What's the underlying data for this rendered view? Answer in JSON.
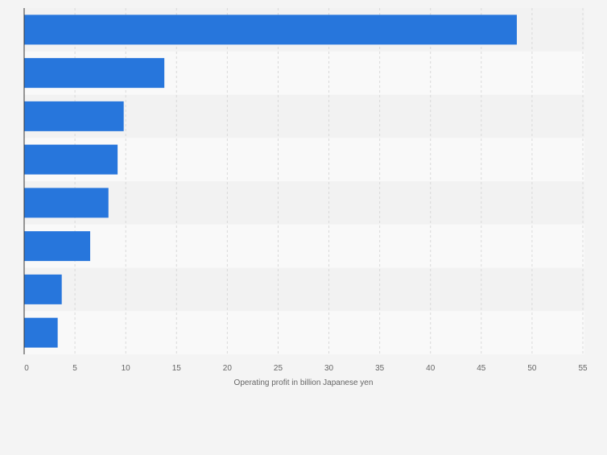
{
  "chart_data": {
    "type": "bar",
    "orientation": "horizontal",
    "categories": [
      "",
      "",
      "",
      "",
      "",
      "",
      "",
      ""
    ],
    "values": [
      48.5,
      13.8,
      9.8,
      9.2,
      8.3,
      6.5,
      3.7,
      3.3
    ],
    "title": "",
    "xlabel": "Operating profit in billion Japanese yen",
    "ylabel": "",
    "xlim": [
      0,
      55
    ],
    "xticks": [
      "0",
      "5",
      "10",
      "15",
      "20",
      "25",
      "30",
      "35",
      "40",
      "45",
      "50",
      "55"
    ],
    "grid": true,
    "legend": "none",
    "colors": {
      "bar": "#2776dc",
      "band_light": "#f9f9f9",
      "band_dark": "#f2f2f2",
      "grid": "#d9d9d9",
      "axis": "#333333",
      "tick_text": "#666666"
    }
  }
}
